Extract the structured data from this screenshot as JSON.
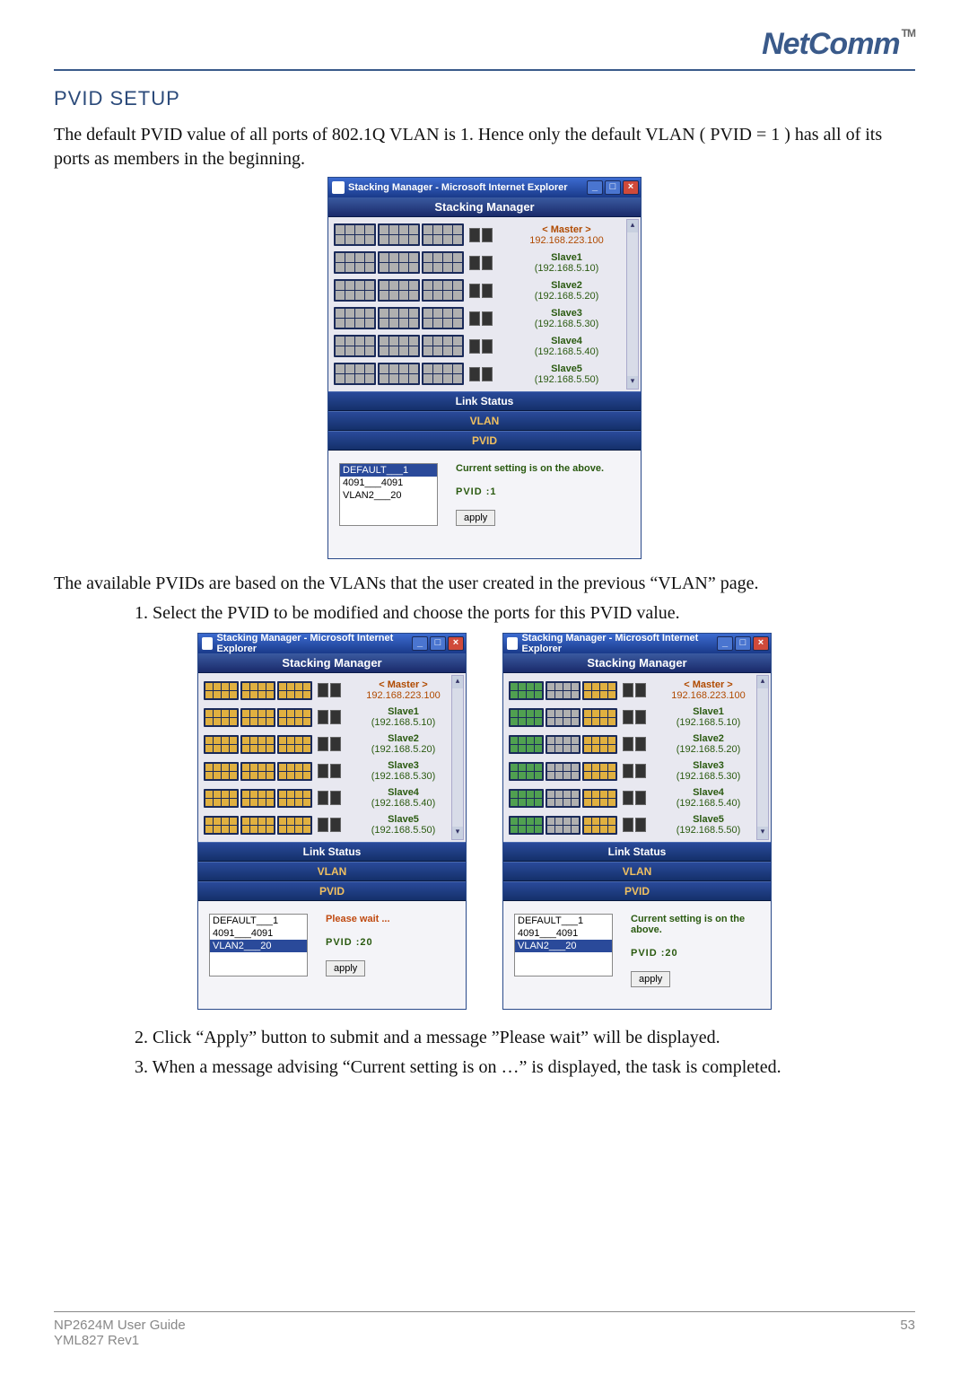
{
  "brand": {
    "name": "NetComm",
    "tm": "TM"
  },
  "section_title": "PVID SETUP",
  "intro_text": "The default PVID value of all ports of 802.1Q VLAN is 1.  Hence only the default VLAN ( PVID = 1 ) has all of its ports as members in the beginning.",
  "after_first_image": "The available PVIDs are based on the VLANs that the user created in the previous “VLAN” page.",
  "step1": "1.  Select the PVID to be modified and choose the ports for this PVID value.",
  "step2": "2.  Click “Apply” button to submit and a message ”Please wait” will be displayed.",
  "step3": "3.  When a message  advising “Current setting is on …” is displayed, the task is completed.",
  "ie_title": "Stacking Manager - Microsoft Internet Explorer",
  "app_header": "Stacking Manager",
  "nav": {
    "link": "Link Status",
    "vlan": "VLAN",
    "pvid": "PVID"
  },
  "devices": [
    {
      "name": "< Master >",
      "ip": "192.168.223.100",
      "master": true
    },
    {
      "name": "Slave1",
      "ip": "(192.168.5.10)",
      "master": false
    },
    {
      "name": "Slave2",
      "ip": "(192.168.5.20)",
      "master": false
    },
    {
      "name": "Slave3",
      "ip": "(192.168.5.30)",
      "master": false
    },
    {
      "name": "Slave4",
      "ip": "(192.168.5.40)",
      "master": false
    },
    {
      "name": "Slave5",
      "ip": "(192.168.5.50)",
      "master": false
    }
  ],
  "pvid_panel_a": {
    "rows": [
      {
        "text": "DEFAULT___1",
        "sel": true
      },
      {
        "text": "4091___4091",
        "sel": false
      },
      {
        "text": "VLAN2___20",
        "sel": false
      }
    ],
    "status": "Current setting is on the above.",
    "pvid_label": "PVID :1",
    "apply": "apply"
  },
  "pvid_panel_b": {
    "rows": [
      {
        "text": "DEFAULT___1",
        "sel": false
      },
      {
        "text": "4091___4091",
        "sel": false
      },
      {
        "text": "VLAN2___20",
        "sel": true
      }
    ],
    "status": "Please wait ...",
    "pvid_label": "PVID :20",
    "apply": "apply"
  },
  "pvid_panel_c": {
    "rows": [
      {
        "text": "DEFAULT___1",
        "sel": false
      },
      {
        "text": "4091___4091",
        "sel": false
      },
      {
        "text": "VLAN2___20",
        "sel": true
      }
    ],
    "status": "Current setting is on the above.",
    "pvid_label": "PVID :20",
    "apply": "apply"
  },
  "footer": {
    "guide": "NP2624M User Guide",
    "rev": "YML827 Rev1",
    "page": "53"
  },
  "colors": {
    "brand_blue": "#3a5a8a",
    "titlebar_grad_top": "#3c6bd0",
    "titlebar_grad_bot": "#1a3a8a",
    "nav_grad_top": "#2a4a9a",
    "nav_grad_bot": "#14306a",
    "device_green": "#2a5a10",
    "master_orange": "#b04a00",
    "wait_red": "#c04a10"
  }
}
